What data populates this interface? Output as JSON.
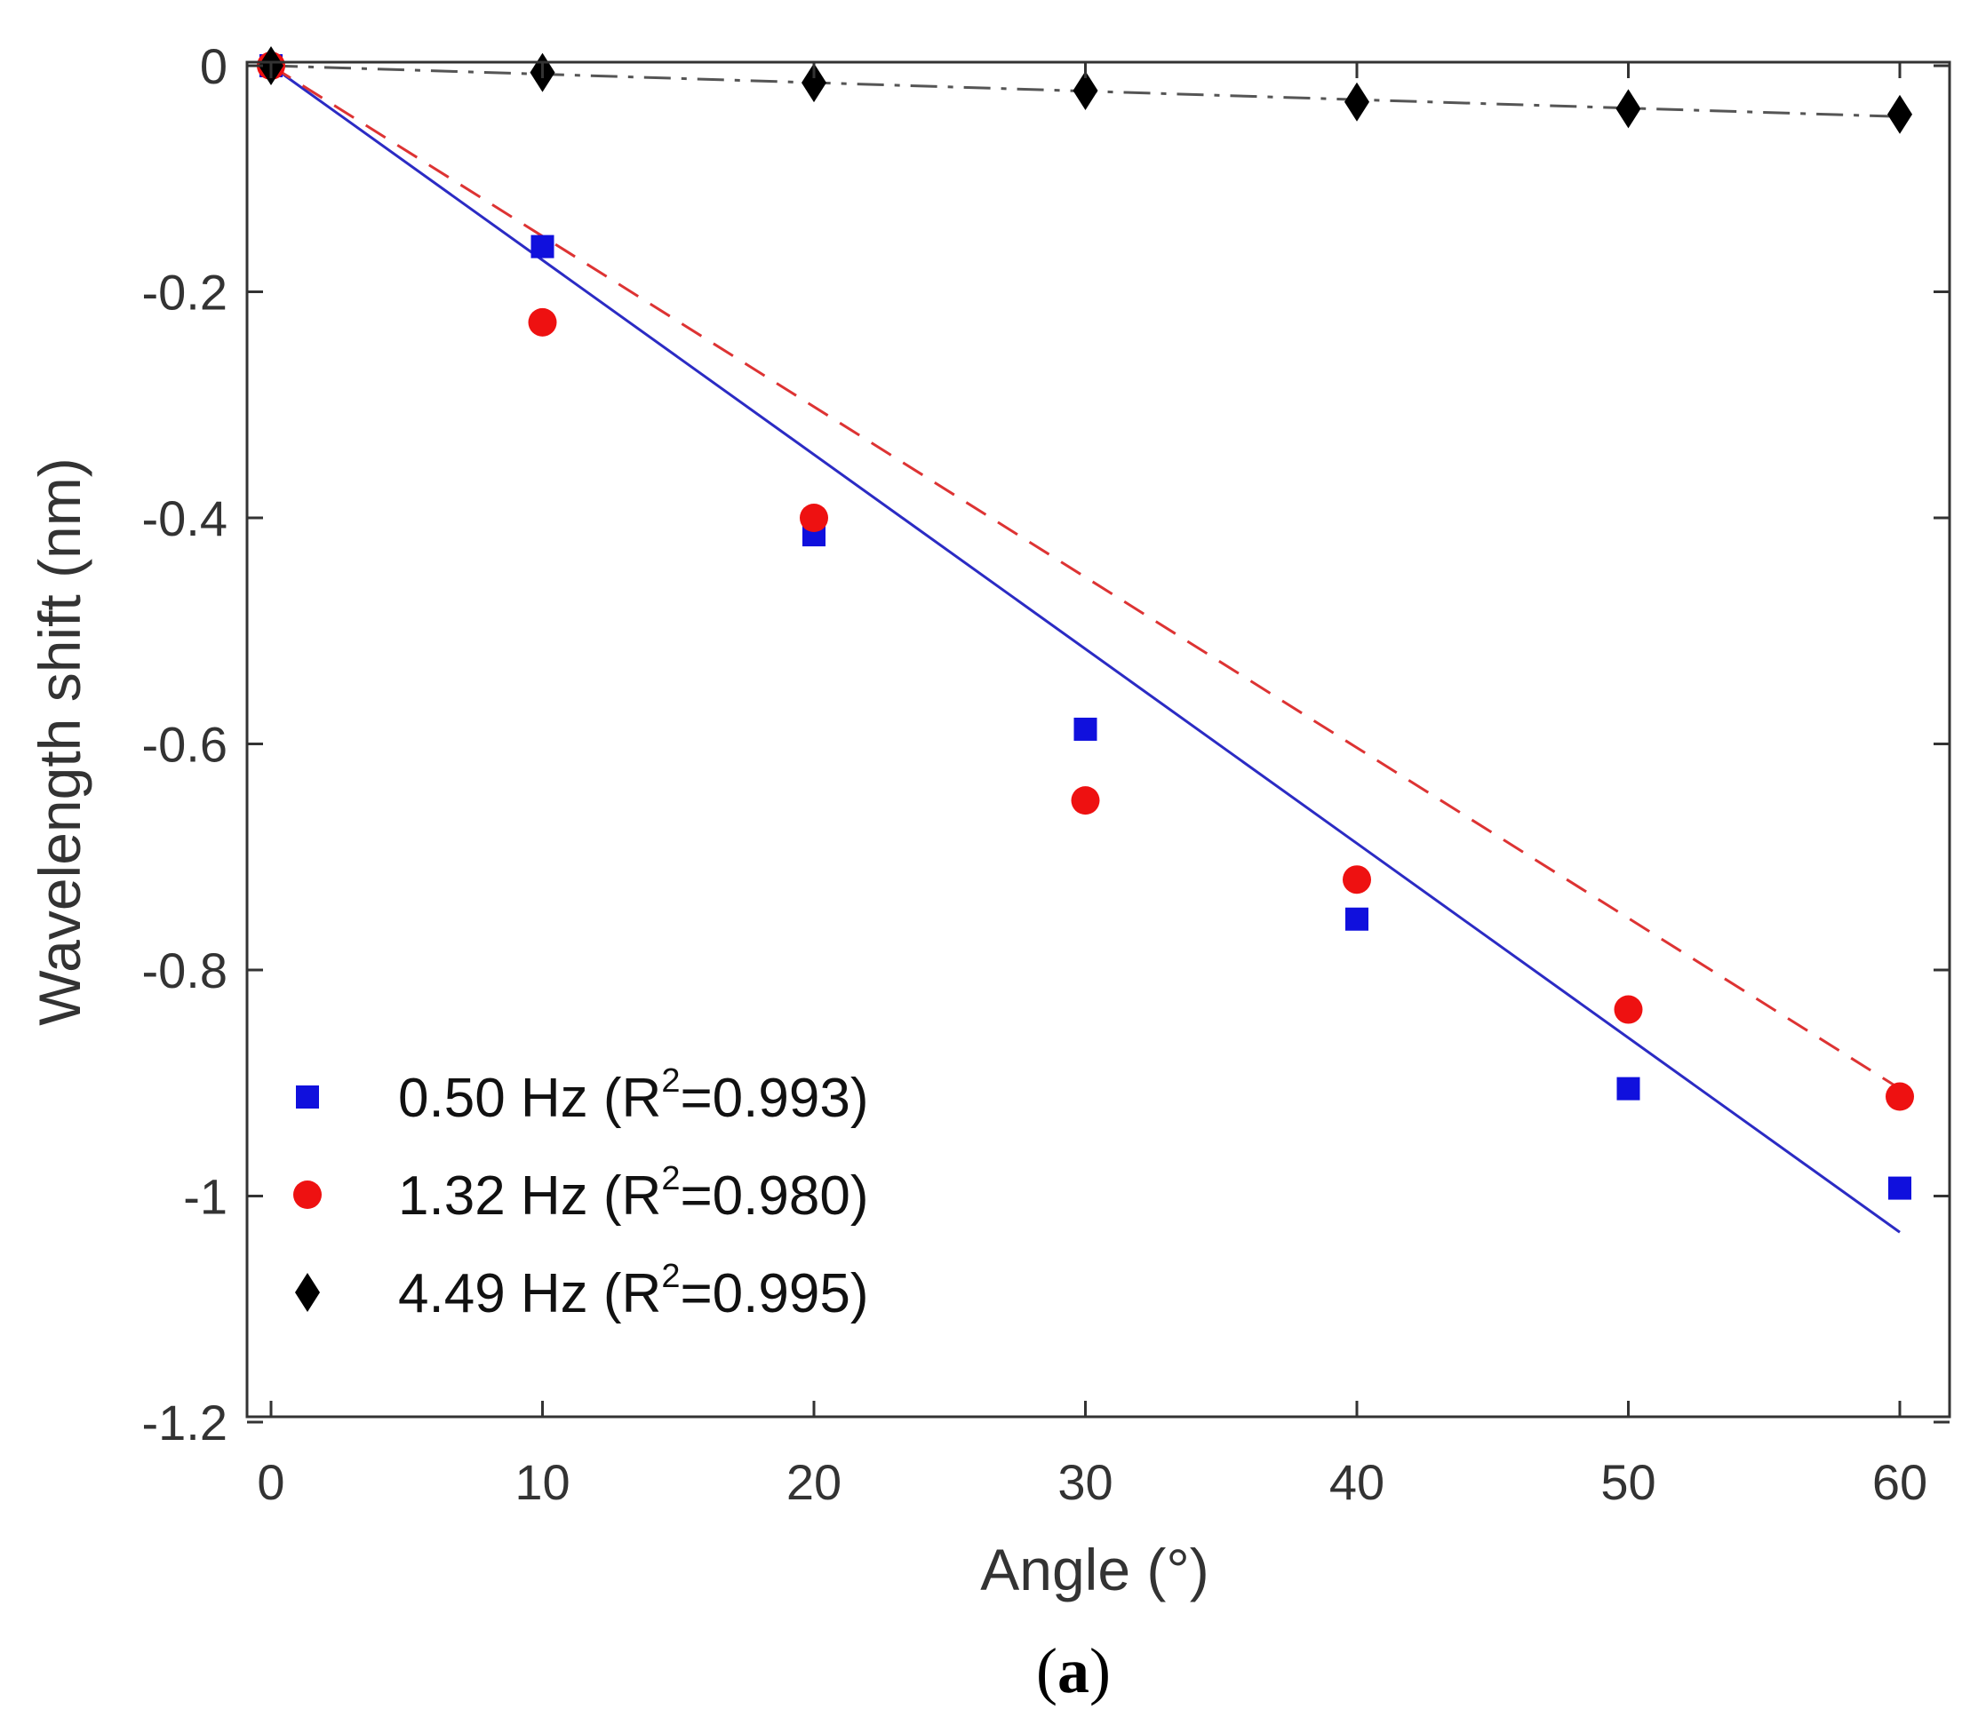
{
  "chart_data": {
    "type": "scatter",
    "xlabel": "Angle (°)",
    "ylabel": "Wavelength shift (nm)",
    "xlim": [
      -1,
      62
    ],
    "ylim": [
      -1.2,
      0
    ],
    "xticks": [
      0,
      10,
      20,
      30,
      40,
      50,
      60
    ],
    "yticks": [
      0,
      -0.2,
      -0.4,
      -0.6,
      -0.8,
      -1,
      -1.2
    ],
    "xtick_labels": [
      "0",
      "10",
      "20",
      "30",
      "40",
      "50",
      "60"
    ],
    "ytick_labels": [
      "0",
      "-0.2",
      "-0.4",
      "-0.6",
      "-0.8",
      "-1",
      "-1.2"
    ],
    "grid": false,
    "legend_position": "bottom-left",
    "caption": {
      "open": "(",
      "letter": "a",
      "close": ")"
    },
    "x": [
      0,
      10,
      20,
      30,
      40,
      50,
      60
    ],
    "series": [
      {
        "name": "0.50 Hz",
        "legend_prefix": "0.50 Hz (R",
        "legend_sup": "2",
        "legend_suffix": "=0.993)",
        "marker": "square",
        "color": "#1010dd",
        "values": [
          0,
          -0.16,
          -0.415,
          -0.587,
          -0.755,
          -0.905,
          -0.993
        ],
        "fit": {
          "style": "solid",
          "color": "#2b2bc4",
          "x": [
            0,
            60
          ],
          "y": [
            0,
            -1.032
          ]
        }
      },
      {
        "name": "1.32 Hz",
        "legend_prefix": "1.32 Hz (R",
        "legend_sup": "2",
        "legend_suffix": "=0.980)",
        "marker": "circle",
        "color": "#ee1111",
        "values": [
          0,
          -0.227,
          -0.4,
          -0.65,
          -0.72,
          -0.835,
          -0.912
        ],
        "fit": {
          "style": "dashed",
          "color": "#dd3333",
          "x": [
            0,
            60
          ],
          "y": [
            0,
            -0.905
          ]
        }
      },
      {
        "name": "4.49 Hz",
        "legend_prefix": "4.49 Hz (R",
        "legend_sup": "2",
        "legend_suffix": "=0.995)",
        "marker": "diamond",
        "color": "#000000",
        "values": [
          0,
          -0.006,
          -0.015,
          -0.022,
          -0.032,
          -0.038,
          -0.043
        ],
        "fit": {
          "style": "dashdot",
          "color": "#555555",
          "x": [
            0,
            60
          ],
          "y": [
            0,
            -0.045
          ]
        }
      }
    ]
  }
}
